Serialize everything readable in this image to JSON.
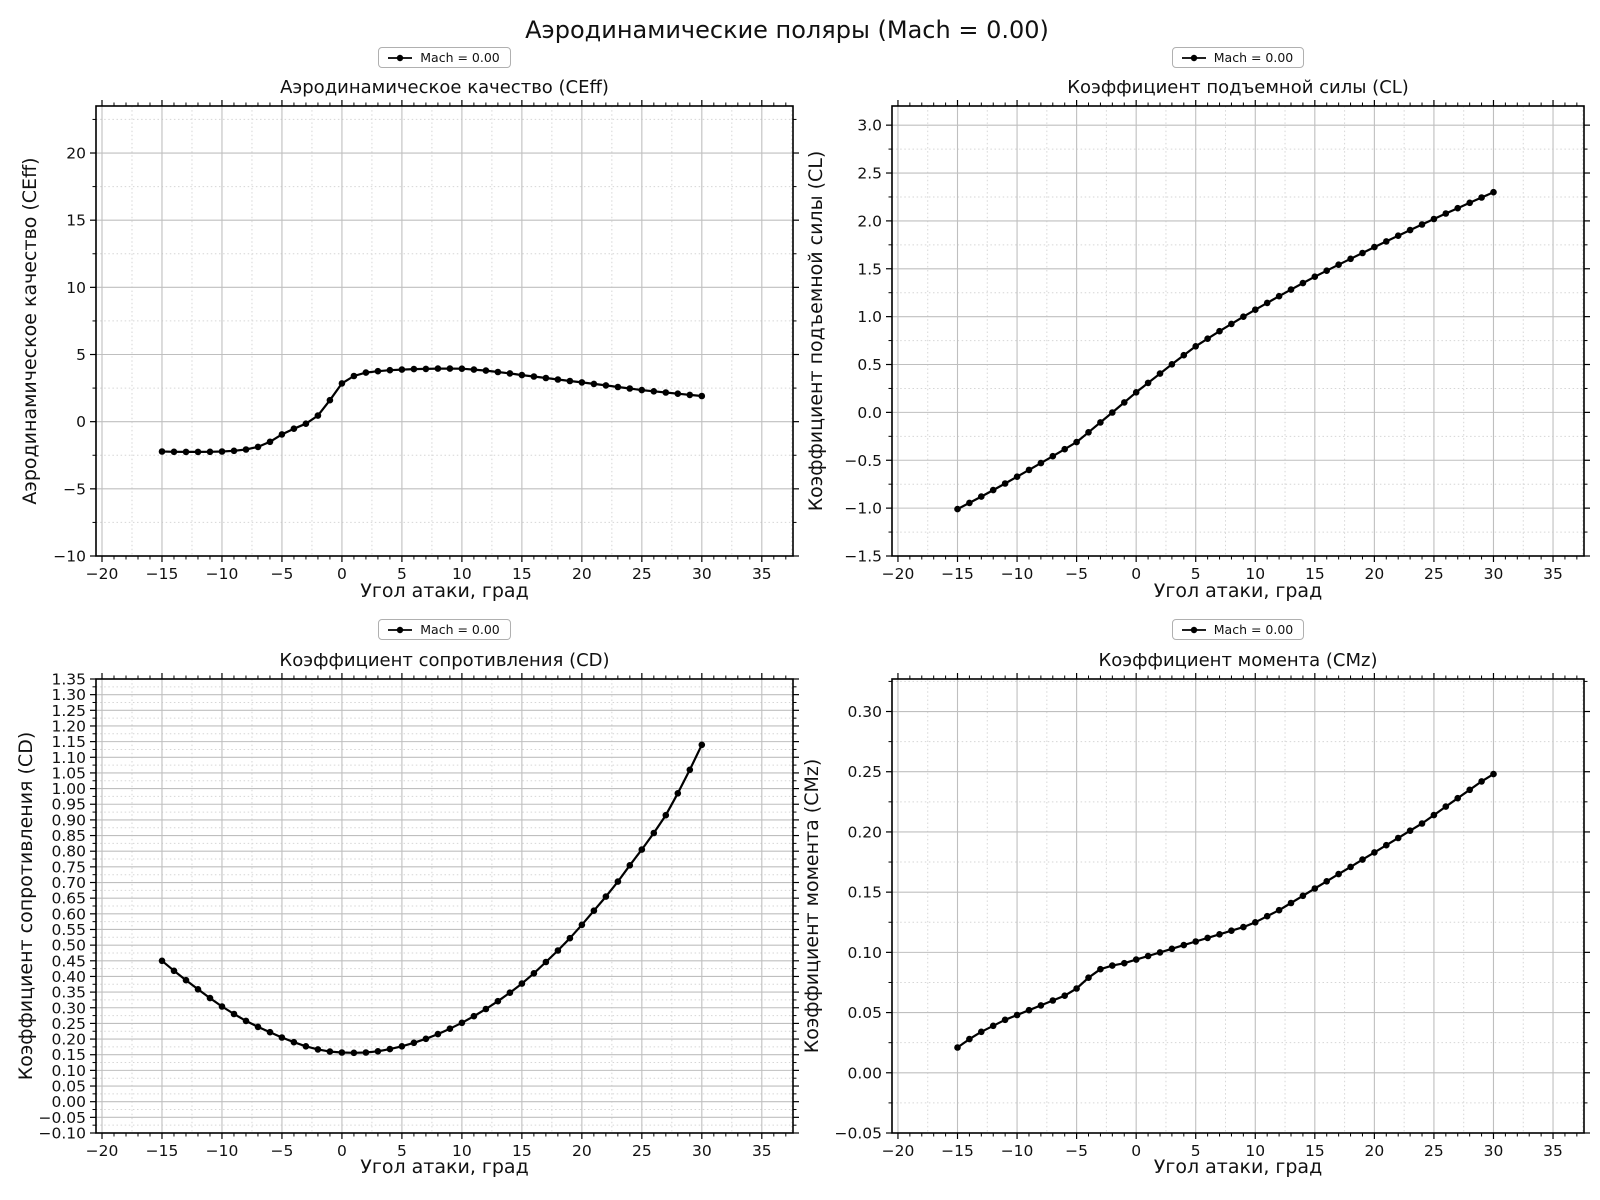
{
  "figure": {
    "suptitle": "Аэродинамические поляры (Mach = 0.00)"
  },
  "style": {
    "line_color": "#000000",
    "grid_major_color": "#bfbfbf",
    "grid_minor_color": "#d6d6d6",
    "spine_color": "#000000",
    "text_color": "#111111",
    "background": "#ffffff"
  },
  "chart_data": [
    {
      "id": "ceff",
      "type": "line",
      "title": "Аэродинамическое качество (CEff)",
      "ylabel": "Аэродинамическое качество (CEff)",
      "xlabel": "Угол атаки, град",
      "legend": "Mach = 0.00",
      "legend_position": "above-center",
      "grid": true,
      "xlim": [
        -20.5,
        37.6
      ],
      "ylim": [
        -10.0,
        23.5
      ],
      "x_ticks": [
        -20,
        -15,
        -10,
        -5,
        0,
        5,
        10,
        15,
        20,
        25,
        30,
        35
      ],
      "y_ticks": [
        -10,
        -5,
        0,
        5,
        10,
        15,
        20
      ],
      "y_tick_decimals": 0,
      "x_minor_grid_step": 2.5,
      "y_minor_grid_step": 2.5,
      "x_minor_tick_step": 1.0,
      "x": [
        -15,
        -14,
        -13,
        -12,
        -11,
        -10,
        -9,
        -8,
        -7,
        -6,
        -5,
        -4,
        -3,
        -2,
        -1,
        0,
        1,
        2,
        3,
        4,
        5,
        6,
        7,
        8,
        9,
        10,
        11,
        12,
        13,
        14,
        15,
        16,
        17,
        18,
        19,
        20,
        21,
        22,
        23,
        24,
        25,
        26,
        27,
        28,
        29,
        30
      ],
      "y": [
        -2.22,
        -2.24,
        -2.25,
        -2.25,
        -2.24,
        -2.22,
        -2.17,
        -2.07,
        -1.88,
        -1.5,
        -0.95,
        -0.52,
        -0.15,
        0.45,
        1.6,
        2.85,
        3.4,
        3.65,
        3.76,
        3.83,
        3.88,
        3.91,
        3.93,
        3.95,
        3.95,
        3.94,
        3.88,
        3.8,
        3.7,
        3.59,
        3.47,
        3.36,
        3.25,
        3.14,
        3.03,
        2.92,
        2.81,
        2.7,
        2.58,
        2.47,
        2.35,
        2.26,
        2.17,
        2.08,
        1.99,
        1.91
      ]
    },
    {
      "id": "cl",
      "type": "line",
      "title": "Коэффициент подъемной силы (CL)",
      "ylabel": "Коэффициент подъемной силы (CL)",
      "xlabel": "Угол атаки, град",
      "legend": "Mach = 0.00",
      "legend_position": "above-center",
      "grid": true,
      "xlim": [
        -20.5,
        37.6
      ],
      "ylim": [
        -1.5,
        3.2
      ],
      "x_ticks": [
        -20,
        -15,
        -10,
        -5,
        0,
        5,
        10,
        15,
        20,
        25,
        30,
        35
      ],
      "y_ticks": [
        -1.5,
        -1.0,
        -0.5,
        0.0,
        0.5,
        1.0,
        1.5,
        2.0,
        2.5,
        3.0
      ],
      "y_tick_decimals": 1,
      "x_minor_grid_step": 2.5,
      "y_minor_grid_step": 0.25,
      "x_minor_tick_step": 1.0,
      "x": [
        -15,
        -14,
        -13,
        -12,
        -11,
        -10,
        -9,
        -8,
        -7,
        -6,
        -5,
        -4,
        -3,
        -2,
        -1,
        0,
        1,
        2,
        3,
        4,
        5,
        6,
        7,
        8,
        9,
        10,
        11,
        12,
        13,
        14,
        15,
        16,
        17,
        18,
        19,
        20,
        21,
        22,
        23,
        24,
        25,
        26,
        27,
        28,
        29,
        30
      ],
      "y": [
        -1.01,
        -0.945,
        -0.88,
        -0.812,
        -0.743,
        -0.672,
        -0.601,
        -0.53,
        -0.458,
        -0.385,
        -0.31,
        -0.208,
        -0.105,
        -0.001,
        0.104,
        0.21,
        0.308,
        0.405,
        0.502,
        0.597,
        0.69,
        0.77,
        0.848,
        0.924,
        0.999,
        1.072,
        1.143,
        1.213,
        1.282,
        1.35,
        1.417,
        1.48,
        1.542,
        1.604,
        1.665,
        1.726,
        1.786,
        1.845,
        1.904,
        1.962,
        2.02,
        2.077,
        2.133,
        2.189,
        2.244,
        2.3
      ]
    },
    {
      "id": "cd",
      "type": "line",
      "title": "Коэффициент сопротивления (CD)",
      "ylabel": "Коэффициент сопротивления (CD)",
      "xlabel": "Угол атаки, град",
      "legend": "Mach = 0.00",
      "legend_position": "above-center",
      "grid": true,
      "xlim": [
        -20.5,
        37.6
      ],
      "ylim": [
        -0.1,
        1.35
      ],
      "x_ticks": [
        -20,
        -15,
        -10,
        -5,
        0,
        5,
        10,
        15,
        20,
        25,
        30,
        35
      ],
      "y_ticks": [
        -0.1,
        -0.05,
        0.0,
        0.05,
        0.1,
        0.15,
        0.2,
        0.25,
        0.3,
        0.35,
        0.4,
        0.45,
        0.5,
        0.55,
        0.6,
        0.65,
        0.7,
        0.75,
        0.8,
        0.85,
        0.9,
        0.95,
        1.0,
        1.05,
        1.1,
        1.15,
        1.2,
        1.25,
        1.3,
        1.35
      ],
      "y_tick_decimals": 2,
      "x_minor_grid_step": 2.5,
      "y_minor_grid_step": 0.025,
      "x_minor_tick_step": 1.0,
      "x": [
        -15,
        -14,
        -13,
        -12,
        -11,
        -10,
        -9,
        -8,
        -7,
        -6,
        -5,
        -4,
        -3,
        -2,
        -1,
        0,
        1,
        2,
        3,
        4,
        5,
        6,
        7,
        8,
        9,
        10,
        11,
        12,
        13,
        14,
        15,
        16,
        17,
        18,
        19,
        20,
        21,
        22,
        23,
        24,
        25,
        26,
        27,
        28,
        29,
        30
      ],
      "y": [
        0.45,
        0.418,
        0.388,
        0.359,
        0.331,
        0.304,
        0.28,
        0.258,
        0.239,
        0.222,
        0.205,
        0.19,
        0.177,
        0.167,
        0.16,
        0.157,
        0.156,
        0.157,
        0.161,
        0.168,
        0.177,
        0.188,
        0.201,
        0.216,
        0.233,
        0.252,
        0.273,
        0.296,
        0.321,
        0.348,
        0.377,
        0.41,
        0.446,
        0.483,
        0.522,
        0.565,
        0.61,
        0.655,
        0.703,
        0.755,
        0.805,
        0.858,
        0.915,
        0.985,
        1.06,
        1.14
      ]
    },
    {
      "id": "cmz",
      "type": "line",
      "title": "Коэффициент момента (CMz)",
      "ylabel": "Коэффициент момента (CMz)",
      "xlabel": "Угол атаки, град",
      "legend": "Mach = 0.00",
      "legend_position": "above-center",
      "grid": true,
      "xlim": [
        -20.5,
        37.6
      ],
      "ylim": [
        -0.05,
        0.327
      ],
      "x_ticks": [
        -20,
        -15,
        -10,
        -5,
        0,
        5,
        10,
        15,
        20,
        25,
        30,
        35
      ],
      "y_ticks": [
        -0.05,
        0.0,
        0.05,
        0.1,
        0.15,
        0.2,
        0.25,
        0.3
      ],
      "y_tick_decimals": 2,
      "x_minor_grid_step": 2.5,
      "y_minor_grid_step": 0.025,
      "x_minor_tick_step": 1.0,
      "x": [
        -15,
        -14,
        -13,
        -12,
        -11,
        -10,
        -9,
        -8,
        -7,
        -6,
        -5,
        -4,
        -3,
        -2,
        -1,
        0,
        1,
        2,
        3,
        4,
        5,
        6,
        7,
        8,
        9,
        10,
        11,
        12,
        13,
        14,
        15,
        16,
        17,
        18,
        19,
        20,
        21,
        22,
        23,
        24,
        25,
        26,
        27,
        28,
        29,
        30
      ],
      "y": [
        0.021,
        0.028,
        0.034,
        0.039,
        0.044,
        0.048,
        0.052,
        0.056,
        0.06,
        0.064,
        0.07,
        0.079,
        0.086,
        0.089,
        0.091,
        0.094,
        0.097,
        0.1,
        0.103,
        0.106,
        0.109,
        0.112,
        0.115,
        0.118,
        0.121,
        0.125,
        0.13,
        0.135,
        0.141,
        0.147,
        0.153,
        0.159,
        0.165,
        0.171,
        0.177,
        0.183,
        0.189,
        0.195,
        0.201,
        0.207,
        0.214,
        0.221,
        0.228,
        0.235,
        0.242,
        0.248
      ]
    }
  ]
}
